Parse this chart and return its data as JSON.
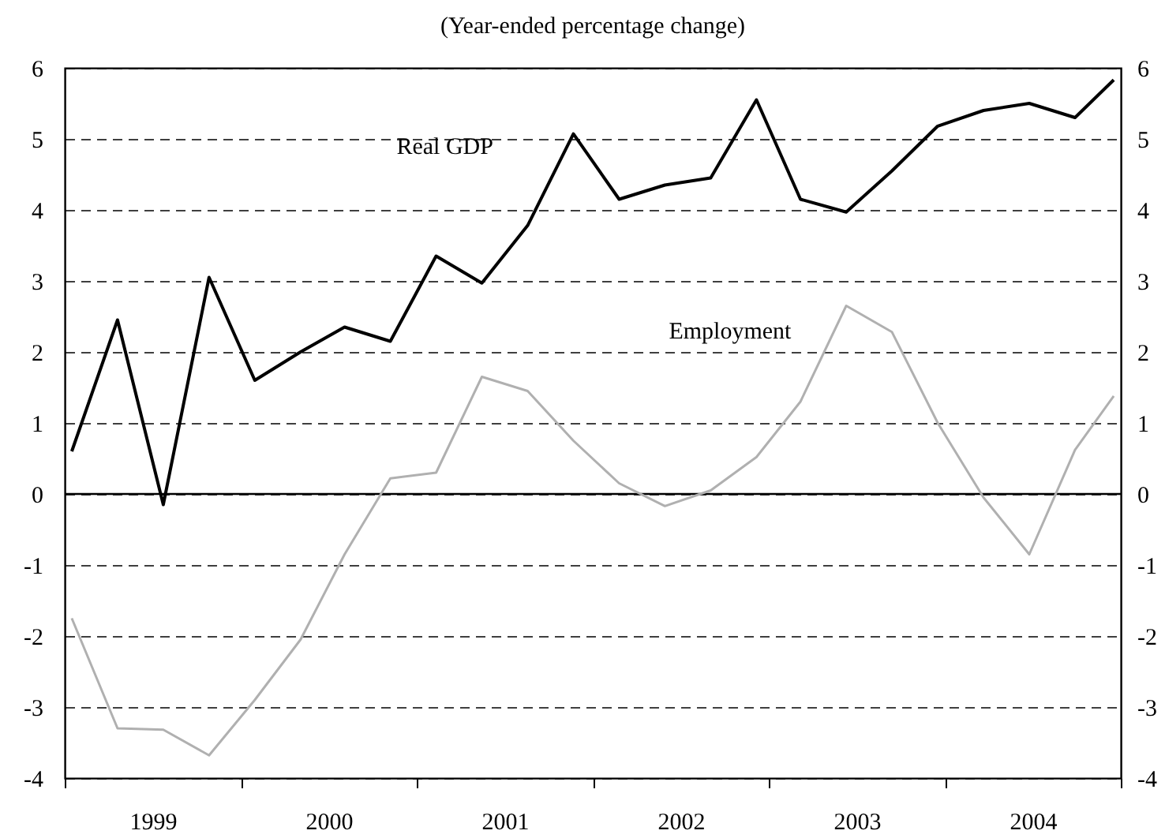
{
  "chart_data": {
    "type": "line",
    "title": "(Year-ended percentage change)",
    "x": [
      1999.04,
      1999.3,
      1999.56,
      1999.82,
      2000.08,
      2000.34,
      2000.59,
      2000.85,
      2001.11,
      2001.37,
      2001.63,
      2001.89,
      2002.15,
      2002.41,
      2002.67,
      2002.93,
      2003.18,
      2003.44,
      2003.7,
      2003.96,
      2004.22,
      2004.48,
      2004.74,
      2004.96
    ],
    "series": [
      {
        "name": "Real GDP",
        "color": "#000000",
        "values": [
          0.6,
          2.45,
          -0.15,
          3.05,
          1.6,
          2.0,
          2.35,
          2.15,
          3.35,
          2.97,
          3.78,
          5.07,
          4.15,
          4.35,
          4.45,
          5.55,
          4.15,
          3.97,
          4.55,
          5.18,
          5.4,
          5.5,
          5.3,
          5.83
        ]
      },
      {
        "name": "Employment",
        "color": "#b0b0b0",
        "values": [
          -1.75,
          -3.3,
          -3.32,
          -3.68,
          -2.9,
          -2.05,
          -0.85,
          0.22,
          0.3,
          1.65,
          1.45,
          0.75,
          0.15,
          -0.17,
          0.05,
          0.52,
          1.3,
          2.65,
          2.28,
          1.0,
          -0.05,
          -0.85,
          0.62,
          1.38
        ]
      }
    ],
    "xlim": [
      1999,
      2005
    ],
    "xticks": [
      {
        "value": 1999,
        "label": null
      },
      {
        "value": 1999.5,
        "label": "1999"
      },
      {
        "value": 2000,
        "label": null
      },
      {
        "value": 2000.5,
        "label": "2000"
      },
      {
        "value": 2001,
        "label": null
      },
      {
        "value": 2001.5,
        "label": "2001"
      },
      {
        "value": 2002,
        "label": null
      },
      {
        "value": 2002.5,
        "label": "2002"
      },
      {
        "value": 2003,
        "label": null
      },
      {
        "value": 2003.5,
        "label": "2003"
      },
      {
        "value": 2004,
        "label": null
      },
      {
        "value": 2004.5,
        "label": "2004"
      },
      {
        "value": 2005,
        "label": null
      }
    ],
    "ylim": [
      -4,
      6
    ],
    "yticks": [
      -4,
      -3,
      -2,
      -1,
      0,
      1,
      2,
      3,
      4,
      5,
      6
    ],
    "y2lim": [
      -4,
      6
    ],
    "y2ticks": [
      -4,
      -3,
      -2,
      -1,
      0,
      1,
      2,
      3,
      4,
      5,
      6
    ],
    "ref_lines": [
      {
        "axis": "y",
        "value": 0,
        "color": "#000000"
      }
    ],
    "grid": "y",
    "line_style": "solid"
  }
}
